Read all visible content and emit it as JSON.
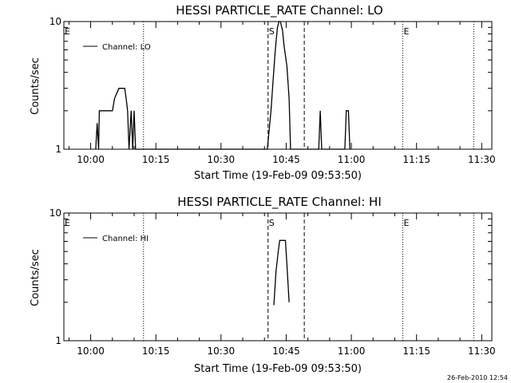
{
  "footer": {
    "timestamp": "26-Feb-2010 12:54"
  },
  "chart_data": [
    {
      "type": "line",
      "title": "HESSI PARTICLE_RATE Channel: LO",
      "xlabel": "Start Time (19-Feb-09 09:53:50)",
      "ylabel": "Counts/sec",
      "legend": {
        "label": "Channel: LO",
        "placement": "top-left"
      },
      "x_ticks": [
        "10:00",
        "10:15",
        "10:30",
        "10:45",
        "11:00",
        "11:15",
        "11:30"
      ],
      "y_ticks": [
        "1",
        "10"
      ],
      "xlim": [
        "09:53:50",
        "11:32:20"
      ],
      "ylim": [
        1,
        10
      ],
      "y_scale": "log",
      "grid": false,
      "vertical_markers": [
        {
          "x": "09:53:50",
          "style": "dotted",
          "label": "E"
        },
        {
          "x": "10:12:10",
          "style": "dotted",
          "label": ""
        },
        {
          "x": "10:40:50",
          "style": "dashed",
          "label": "S"
        },
        {
          "x": "10:49:10",
          "style": "dashed",
          "label": ""
        },
        {
          "x": "11:11:50",
          "style": "dotted",
          "label": "E"
        },
        {
          "x": "11:28:10",
          "style": "dotted",
          "label": ""
        }
      ],
      "series": [
        {
          "name": "Channel: LO",
          "color": "#000000",
          "points": [
            [
              "10:01:10",
              1
            ],
            [
              "10:01:30",
              1.6
            ],
            [
              "10:01:50",
              1
            ],
            [
              "10:02:00",
              2
            ],
            [
              "10:04:30",
              2
            ],
            [
              "10:05:00",
              2
            ],
            [
              "10:05:30",
              2.5
            ],
            [
              "10:06:30",
              3
            ],
            [
              "10:07:50",
              3
            ],
            [
              "10:08:10",
              2.5
            ],
            [
              "10:08:30",
              2
            ],
            [
              "10:08:50",
              1
            ],
            [
              "10:09:20",
              2
            ],
            [
              "10:09:40",
              1
            ],
            [
              "10:10:00",
              2
            ],
            [
              "10:10:20",
              1
            ],
            [
              "10:40:40",
              1
            ],
            [
              "10:41:30",
              2
            ],
            [
              "10:42:00",
              3.5
            ],
            [
              "10:42:30",
              6
            ],
            [
              "10:43:00",
              9
            ],
            [
              "10:43:20",
              10.5
            ],
            [
              "10:43:40",
              10
            ],
            [
              "10:44:10",
              8.5
            ],
            [
              "10:44:30",
              6.5
            ],
            [
              "10:45:10",
              4.5
            ],
            [
              "10:45:40",
              2.5
            ],
            [
              "10:46:00",
              1
            ],
            [
              "10:52:30",
              1
            ],
            [
              "10:52:50",
              2
            ],
            [
              "10:53:10",
              1
            ],
            [
              "10:58:30",
              1
            ],
            [
              "10:58:50",
              2
            ],
            [
              "10:59:20",
              2
            ],
            [
              "10:59:40",
              1
            ]
          ]
        }
      ]
    },
    {
      "type": "line",
      "title": "HESSI PARTICLE_RATE Channel: HI",
      "xlabel": "Start Time (19-Feb-09 09:53:50)",
      "ylabel": "Counts/sec",
      "legend": {
        "label": "Channel: HI",
        "placement": "top-left"
      },
      "x_ticks": [
        "10:00",
        "10:15",
        "10:30",
        "10:45",
        "11:00",
        "11:15",
        "11:30"
      ],
      "y_ticks": [
        "1",
        "10"
      ],
      "xlim": [
        "09:53:50",
        "11:32:20"
      ],
      "ylim": [
        1,
        10
      ],
      "y_scale": "log",
      "grid": false,
      "vertical_markers": [
        {
          "x": "09:53:50",
          "style": "dotted",
          "label": "E"
        },
        {
          "x": "10:12:10",
          "style": "dotted",
          "label": ""
        },
        {
          "x": "10:40:50",
          "style": "dashed",
          "label": "S"
        },
        {
          "x": "10:49:10",
          "style": "dashed",
          "label": ""
        },
        {
          "x": "11:11:50",
          "style": "dotted",
          "label": "E"
        },
        {
          "x": "11:28:10",
          "style": "dotted",
          "label": ""
        }
      ],
      "series": [
        {
          "name": "Channel: HI",
          "color": "#000000",
          "points": [
            [
              "10:42:10",
              1.9
            ],
            [
              "10:42:40",
              3.5
            ],
            [
              "10:43:10",
              5
            ],
            [
              "10:43:30",
              6.1
            ],
            [
              "10:44:50",
              6.1
            ],
            [
              "10:45:10",
              4
            ],
            [
              "10:45:40",
              2
            ]
          ]
        }
      ]
    }
  ]
}
